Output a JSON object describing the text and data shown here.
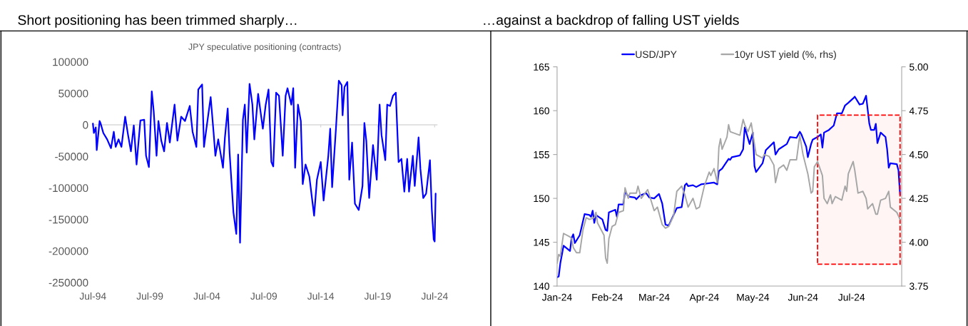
{
  "chart_data": [
    {
      "type": "line",
      "title": "Short positioning has been trimmed sharply…",
      "subtitle": "JPY speculative positioning (contracts)",
      "xlim": [
        "1994-06",
        "2024-10"
      ],
      "xticks": [
        {
          "value": "1994-07",
          "label": "Jul-94"
        },
        {
          "value": "1999-07",
          "label": "Jul-99"
        },
        {
          "value": "2004-07",
          "label": "Jul-04"
        },
        {
          "value": "2009-07",
          "label": "Jul-09"
        },
        {
          "value": "2014-07",
          "label": "Jul-14"
        },
        {
          "value": "2019-07",
          "label": "Jul-19"
        },
        {
          "value": "2024-07",
          "label": "Jul-24"
        }
      ],
      "ylim": [
        -250000,
        100000
      ],
      "yticks": [
        -250000,
        -200000,
        -150000,
        -100000,
        -50000,
        0,
        50000,
        100000
      ],
      "grid": false,
      "ref_lines": [
        {
          "axis": "y",
          "value": 0,
          "color": "#d9d9d9"
        }
      ],
      "series": [
        {
          "color": "#0000ff",
          "x": [
            "1994-07",
            "1994-08",
            "1994-10",
            "1994-11",
            "1995-02",
            "1995-03",
            "1995-06",
            "1995-10",
            "1996-02",
            "1996-05",
            "1996-07",
            "1996-10",
            "1997-01",
            "1997-05",
            "1997-08",
            "1997-11",
            "1998-02",
            "1998-05",
            "1998-09",
            "1999-01",
            "1999-03",
            "1999-06",
            "1999-09",
            "1999-11",
            "2000-02",
            "2000-04",
            "2000-07",
            "2000-10",
            "2001-01",
            "2001-04",
            "2001-09",
            "2001-12",
            "2002-04",
            "2002-08",
            "2003-01",
            "2003-04",
            "2003-08",
            "2003-10",
            "2004-02",
            "2004-04",
            "2004-07",
            "2004-11",
            "2005-02",
            "2005-04",
            "2005-07",
            "2005-12",
            "2006-02",
            "2006-05",
            "2006-07",
            "2006-11",
            "2007-02",
            "2007-04",
            "2007-06",
            "2007-09",
            "2007-11",
            "2008-01",
            "2008-04",
            "2008-07",
            "2008-09",
            "2009-01",
            "2009-06",
            "2009-09",
            "2009-12",
            "2010-03",
            "2010-05",
            "2010-08",
            "2010-11",
            "2011-03",
            "2011-06",
            "2011-08",
            "2011-12",
            "2012-02",
            "2012-04",
            "2012-07",
            "2012-10",
            "2012-12",
            "2013-03",
            "2013-07",
            "2013-12",
            "2014-03",
            "2014-07",
            "2014-10",
            "2015-03",
            "2015-05",
            "2015-07",
            "2015-11",
            "2016-02",
            "2016-05",
            "2016-06",
            "2016-08",
            "2016-11",
            "2017-01",
            "2017-04",
            "2017-07",
            "2017-11",
            "2018-03",
            "2018-05",
            "2018-07",
            "2018-10",
            "2019-02",
            "2019-06",
            "2019-09",
            "2019-11",
            "2020-03",
            "2020-05",
            "2020-08",
            "2020-11",
            "2021-02",
            "2021-05",
            "2021-08",
            "2021-11",
            "2022-02",
            "2022-04",
            "2022-08",
            "2022-10",
            "2023-02",
            "2023-04",
            "2023-07",
            "2023-10",
            "2024-02",
            "2024-04",
            "2024-06",
            "2024-07",
            "2024-08"
          ],
          "values": [
            2000,
            -13000,
            -4000,
            -40000,
            6000,
            3000,
            -13000,
            -23000,
            -37000,
            -11000,
            -35000,
            -23000,
            -35000,
            13000,
            -16000,
            -42000,
            -1000,
            -63000,
            7000,
            8000,
            -49000,
            -67000,
            53000,
            22000,
            -49000,
            6000,
            -25000,
            -42000,
            3000,
            -28000,
            32000,
            -25000,
            13000,
            6000,
            30000,
            -11000,
            -35000,
            56000,
            64000,
            -35000,
            -1000,
            44000,
            -11000,
            -49000,
            -23000,
            -68000,
            -20000,
            26000,
            -44000,
            -139000,
            -173000,
            -47000,
            -187000,
            8000,
            32000,
            -44000,
            65000,
            32000,
            -23000,
            49000,
            -6000,
            32000,
            56000,
            -59000,
            -66000,
            51000,
            46000,
            -49000,
            46000,
            58000,
            32000,
            58000,
            -68000,
            32000,
            6000,
            -94000,
            -63000,
            -82000,
            -144000,
            -87000,
            -59000,
            -120000,
            -49000,
            -6000,
            -99000,
            -6000,
            70000,
            63000,
            15000,
            60000,
            68000,
            -87000,
            -28000,
            -125000,
            -135000,
            -97000,
            3000,
            -25000,
            -116000,
            -32000,
            -87000,
            32000,
            -16000,
            -56000,
            32000,
            30000,
            46000,
            51000,
            -59000,
            -54000,
            -106000,
            -54000,
            -106000,
            -49000,
            -97000,
            -20000,
            -70000,
            -116000,
            -109000,
            -56000,
            -135000,
            -182000,
            -185000,
            -109000
          ]
        }
      ]
    },
    {
      "type": "line",
      "title": "…against a backdrop of falling UST yields",
      "xlim": [
        "2024-01-01",
        "2024-08-01"
      ],
      "xticks": [
        {
          "value": "2024-01-01",
          "label": "Jan-24"
        },
        {
          "value": "2024-02-01",
          "label": "Feb-24"
        },
        {
          "value": "2024-03-01",
          "label": "Mar-24"
        },
        {
          "value": "2024-04-01",
          "label": "Apr-24"
        },
        {
          "value": "2024-05-01",
          "label": "May-24"
        },
        {
          "value": "2024-06-01",
          "label": "Jun-24"
        },
        {
          "value": "2024-07-01",
          "label": "Jul-24"
        }
      ],
      "ylim": [
        140,
        165
      ],
      "yticks": [
        140,
        145,
        150,
        155,
        160,
        165
      ],
      "y2lim": [
        3.75,
        5.0
      ],
      "y2ticks": [
        {
          "value": 3.75,
          "label": "3.75"
        },
        {
          "value": 4.0,
          "label": "4.00"
        },
        {
          "value": 4.25,
          "label": "4.25"
        },
        {
          "value": 4.5,
          "label": "4.50"
        },
        {
          "value": 4.75,
          "label": "4.75"
        },
        {
          "value": 5.0,
          "label": "5.00"
        }
      ],
      "grid": false,
      "legend": "top",
      "bands": [
        {
          "axis": "x",
          "from": "2024-06-10",
          "to": "2024-07-31",
          "color": "#ff0000"
        }
      ],
      "series": [
        {
          "name": "USD/JPY",
          "color": "#0000ff",
          "x": [
            "2024-01-01",
            "2024-01-02",
            "2024-01-03",
            "2024-01-05",
            "2024-01-09",
            "2024-01-10",
            "2024-01-11",
            "2024-01-12",
            "2024-01-15",
            "2024-01-18",
            "2024-01-21",
            "2024-01-22",
            "2024-01-23",
            "2024-01-24",
            "2024-01-25",
            "2024-01-29",
            "2024-01-31",
            "2024-02-01",
            "2024-02-02",
            "2024-02-06",
            "2024-02-07",
            "2024-02-08",
            "2024-02-11",
            "2024-02-12",
            "2024-02-14",
            "2024-02-18",
            "2024-02-19",
            "2024-02-21",
            "2024-02-25",
            "2024-02-27",
            "2024-03-01",
            "2024-03-04",
            "2024-03-06",
            "2024-03-08",
            "2024-03-10",
            "2024-03-12",
            "2024-03-15",
            "2024-03-18",
            "2024-03-20",
            "2024-03-21",
            "2024-03-22",
            "2024-03-25",
            "2024-03-27",
            "2024-03-30",
            "2024-04-07",
            "2024-04-09",
            "2024-04-10",
            "2024-04-12",
            "2024-04-16",
            "2024-04-17",
            "2024-04-18",
            "2024-04-23",
            "2024-04-25",
            "2024-04-26",
            "2024-04-29",
            "2024-05-01",
            "2024-05-02",
            "2024-05-03",
            "2024-05-07",
            "2024-05-09",
            "2024-05-14",
            "2024-05-15",
            "2024-05-17",
            "2024-05-22",
            "2024-05-24",
            "2024-05-28",
            "2024-05-30",
            "2024-05-31",
            "2024-06-03",
            "2024-06-04",
            "2024-06-06",
            "2024-06-07",
            "2024-06-10",
            "2024-06-12",
            "2024-06-13",
            "2024-06-14",
            "2024-06-17",
            "2024-06-20",
            "2024-06-22",
            "2024-06-25",
            "2024-06-27",
            "2024-06-29",
            "2024-07-02",
            "2024-07-03",
            "2024-07-06",
            "2024-07-08",
            "2024-07-10",
            "2024-07-12",
            "2024-07-13",
            "2024-07-15",
            "2024-07-16",
            "2024-07-17",
            "2024-07-19",
            "2024-07-22",
            "2024-07-23",
            "2024-07-24",
            "2024-07-25",
            "2024-07-29",
            "2024-07-30",
            "2024-07-31"
          ],
          "values": [
            141.0,
            141.1,
            142.6,
            144.6,
            144.0,
            145.5,
            145.9,
            144.9,
            145.8,
            148.2,
            148.1,
            147.9,
            148.6,
            147.2,
            148.1,
            147.6,
            146.4,
            146.3,
            148.4,
            148.7,
            147.9,
            149.3,
            149.3,
            150.8,
            150.2,
            150.1,
            149.9,
            150.3,
            150.6,
            150.1,
            150.0,
            150.5,
            149.4,
            147.0,
            146.9,
            147.7,
            148.9,
            149.0,
            151.5,
            151.7,
            151.4,
            151.5,
            151.3,
            151.6,
            151.8,
            151.6,
            153.1,
            153.4,
            154.5,
            154.4,
            154.7,
            154.9,
            155.6,
            158.1,
            156.2,
            157.5,
            153.7,
            153.0,
            154.0,
            155.5,
            156.4,
            155.0,
            155.6,
            156.2,
            157.0,
            156.9,
            157.6,
            157.3,
            155.9,
            154.7,
            156.2,
            156.7,
            157.0,
            157.3,
            155.8,
            157.5,
            157.8,
            158.3,
            159.7,
            159.7,
            160.6,
            160.9,
            161.4,
            161.6,
            160.7,
            160.8,
            161.7,
            158.5,
            157.8,
            157.8,
            158.5,
            156.3,
            157.5,
            157.0,
            155.6,
            153.5,
            154.0,
            153.9,
            153.2,
            150.4
          ]
        },
        {
          "name": "10yr UST yield (%, rhs)",
          "color": "#a6a6a6",
          "axis": "y2",
          "x": [
            "2024-01-01",
            "2024-01-02",
            "2024-01-03",
            "2024-01-05",
            "2024-01-09",
            "2024-01-10",
            "2024-01-11",
            "2024-01-13",
            "2024-01-15",
            "2024-01-17",
            "2024-01-19",
            "2024-01-21",
            "2024-01-24",
            "2024-01-25",
            "2024-01-26",
            "2024-01-30",
            "2024-01-31",
            "2024-02-01",
            "2024-02-02",
            "2024-02-04",
            "2024-02-06",
            "2024-02-08",
            "2024-02-11",
            "2024-02-12",
            "2024-02-14",
            "2024-02-15",
            "2024-02-19",
            "2024-02-20",
            "2024-02-22",
            "2024-02-26",
            "2024-03-01",
            "2024-03-03",
            "2024-03-06",
            "2024-03-08",
            "2024-03-10",
            "2024-03-13",
            "2024-03-15",
            "2024-03-18",
            "2024-03-20",
            "2024-03-22",
            "2024-03-25",
            "2024-03-27",
            "2024-03-29",
            "2024-04-01",
            "2024-04-04",
            "2024-04-05",
            "2024-04-07",
            "2024-04-09",
            "2024-04-10",
            "2024-04-11",
            "2024-04-12",
            "2024-04-15",
            "2024-04-16",
            "2024-04-17",
            "2024-04-23",
            "2024-04-25",
            "2024-04-26",
            "2024-04-28",
            "2024-04-30",
            "2024-05-03",
            "2024-05-07",
            "2024-05-08",
            "2024-05-11",
            "2024-05-14",
            "2024-05-15",
            "2024-05-17",
            "2024-05-20",
            "2024-05-22",
            "2024-05-24",
            "2024-05-28",
            "2024-05-30",
            "2024-06-01",
            "2024-06-04",
            "2024-06-06",
            "2024-06-07",
            "2024-06-08",
            "2024-06-10",
            "2024-06-13",
            "2024-06-14",
            "2024-06-16",
            "2024-06-18",
            "2024-06-19",
            "2024-06-21",
            "2024-06-25",
            "2024-06-27",
            "2024-06-28",
            "2024-06-29",
            "2024-07-02",
            "2024-07-03",
            "2024-07-05",
            "2024-07-08",
            "2024-07-10",
            "2024-07-11",
            "2024-07-14",
            "2024-07-16",
            "2024-07-17",
            "2024-07-19",
            "2024-07-22",
            "2024-07-24",
            "2024-07-25",
            "2024-07-29",
            "2024-07-31"
          ],
          "values": [
            3.88,
            3.93,
            3.92,
            4.05,
            4.03,
            4.02,
            3.97,
            3.94,
            3.94,
            4.07,
            4.14,
            4.13,
            4.14,
            4.17,
            4.11,
            4.04,
            3.91,
            3.88,
            4.02,
            4.09,
            4.1,
            4.17,
            4.18,
            4.31,
            4.25,
            4.28,
            4.28,
            4.32,
            4.25,
            4.3,
            4.18,
            4.2,
            4.1,
            4.08,
            4.09,
            4.15,
            4.29,
            4.32,
            4.27,
            4.2,
            4.25,
            4.19,
            4.2,
            4.32,
            4.4,
            4.38,
            4.42,
            4.34,
            4.54,
            4.59,
            4.53,
            4.6,
            4.67,
            4.63,
            4.61,
            4.7,
            4.67,
            4.63,
            4.68,
            4.5,
            4.48,
            4.5,
            4.49,
            4.44,
            4.34,
            4.42,
            4.44,
            4.41,
            4.47,
            4.47,
            4.61,
            4.5,
            4.39,
            4.28,
            4.29,
            4.43,
            4.46,
            4.38,
            4.25,
            4.22,
            4.27,
            4.22,
            4.26,
            4.24,
            4.32,
            4.29,
            4.39,
            4.46,
            4.41,
            4.28,
            4.29,
            4.25,
            4.19,
            4.22,
            4.16,
            4.16,
            4.24,
            4.25,
            4.29,
            4.2,
            4.17,
            4.13
          ]
        }
      ]
    }
  ]
}
